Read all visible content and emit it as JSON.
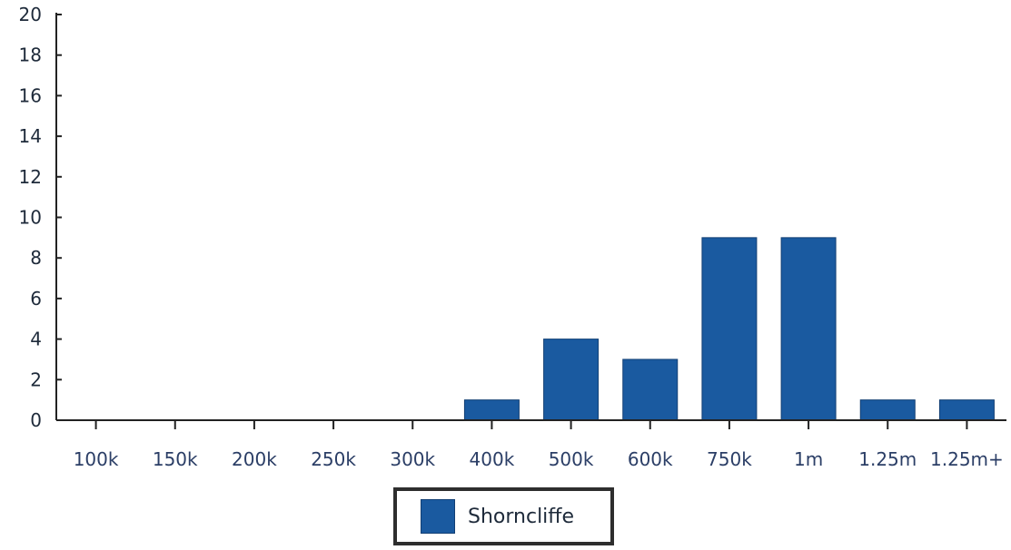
{
  "chart_data": {
    "type": "bar",
    "title": "",
    "xlabel": "",
    "ylabel": "",
    "categories": [
      "100k",
      "150k",
      "200k",
      "250k",
      "300k",
      "400k",
      "500k",
      "600k",
      "750k",
      "1m",
      "1.25m",
      "1.25m+"
    ],
    "y_ticks": [
      "0",
      "2",
      "4",
      "6",
      "8",
      "10",
      "12",
      "14",
      "16",
      "18",
      "20"
    ],
    "ylim": [
      0,
      20
    ],
    "grid": false,
    "legend_position": "bottom-center",
    "series": [
      {
        "name": "Shorncliffe",
        "color": "#1a5aa0",
        "values": [
          0,
          0,
          0,
          0,
          0,
          1,
          4,
          3,
          9,
          9,
          1,
          1
        ]
      }
    ]
  }
}
